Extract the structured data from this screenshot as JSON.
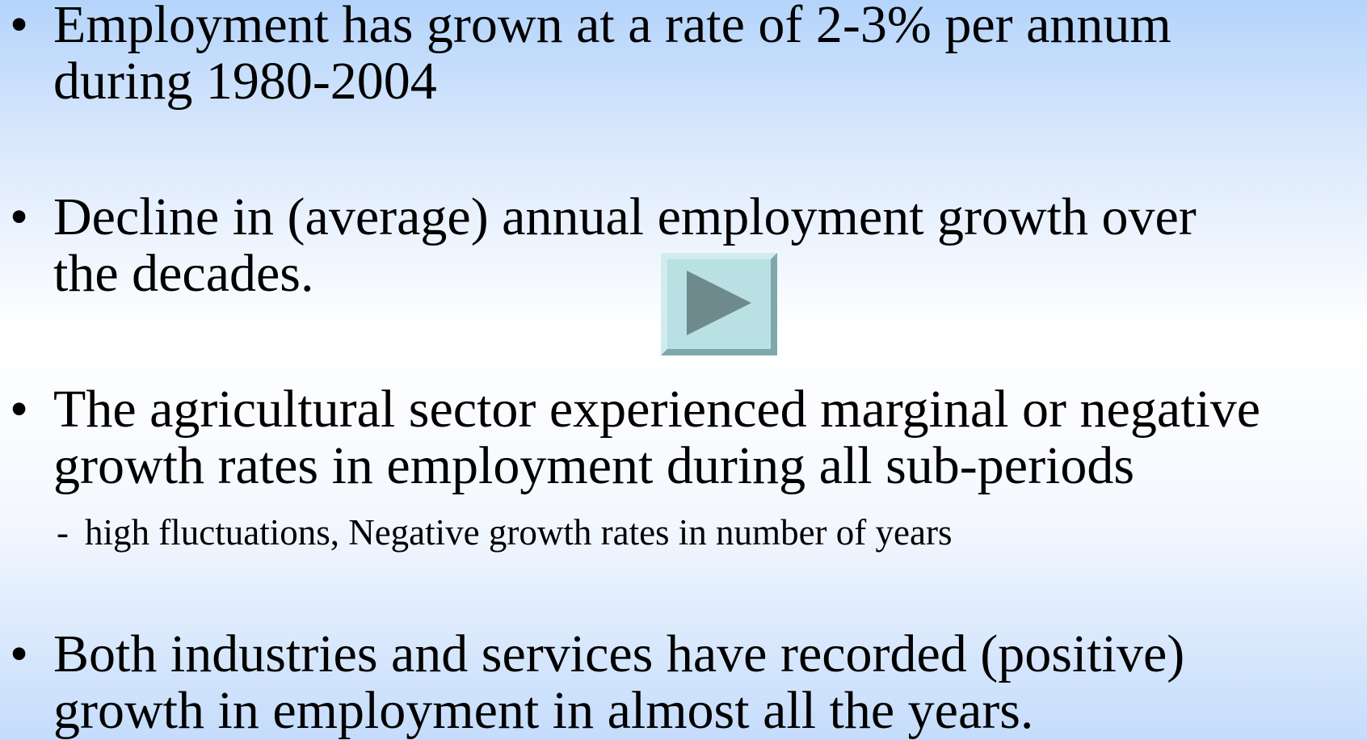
{
  "bullets": [
    {
      "lines": [
        "Employment has grown at a rate of 2-3% per annum",
        "during 1980-2004"
      ]
    },
    {
      "lines": [
        "Decline in (average) annual employment growth over",
        "the decades."
      ]
    },
    {
      "lines": [
        "The agricultural sector experienced marginal or negative",
        "growth rates in employment during all sub-periods"
      ],
      "sub": "high fluctuations, Negative growth rates in number of years"
    },
    {
      "lines": [
        "Both industries and services have recorded (positive)",
        "growth in employment in almost all the years."
      ]
    }
  ]
}
